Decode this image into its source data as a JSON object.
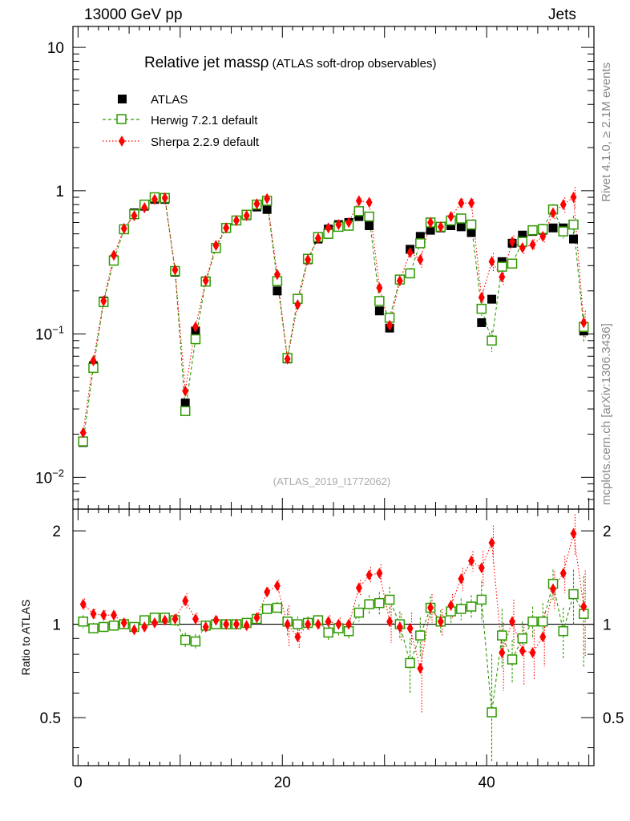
{
  "header": {
    "left": "13000 GeV pp",
    "right": "Jets"
  },
  "side_labels": {
    "rivet": "Rivet 4.1.0, ≥ 2.1M events",
    "mcplots": "mcplots.cern.ch [arXiv:1306.3436]"
  },
  "plot": {
    "title": "Relative jet mass",
    "title_symbol": "ρ",
    "title_suffix": " (ATLAS soft-drop observables)",
    "analysis_id": "(ATLAS_2019_I1772062)"
  },
  "legend": {
    "atlas": "ATLAS",
    "herwig": "Herwig 7.2.1 default",
    "sherpa": "Sherpa 2.2.9 default"
  },
  "colors": {
    "atlas": "#000000",
    "herwig": "#2e9900",
    "sherpa": "#ff0000"
  },
  "chart_data": {
    "type": "scatter",
    "xlim": [
      -0.5,
      50.5
    ],
    "ylim_main": [
      0.006,
      14
    ],
    "ylim_ratio": [
      0.35,
      2.35
    ],
    "x_ticks": [
      "0",
      "20",
      "40"
    ],
    "y_ticks_main": [
      "10",
      "1",
      "10−1",
      "10−2"
    ],
    "y_ticks_ratio": [
      "2",
      "1",
      "0.5"
    ],
    "ratio_ylabel": "Ratio to ATLAS",
    "x": [
      0.5,
      1.5,
      2.5,
      3.5,
      4.5,
      5.5,
      6.5,
      7.5,
      8.5,
      9.5,
      10.5,
      11.5,
      12.5,
      13.5,
      14.5,
      15.5,
      16.5,
      17.5,
      18.5,
      19.5,
      20.5,
      21.5,
      22.5,
      23.5,
      24.5,
      25.5,
      26.5,
      27.5,
      28.5,
      29.5,
      30.5,
      31.5,
      32.5,
      33.5,
      34.5,
      35.5,
      36.5,
      37.5,
      38.5,
      39.5,
      40.5,
      41.5,
      42.5,
      43.5,
      44.5,
      45.5,
      46.5,
      47.5,
      48.5,
      49.5
    ],
    "atlas": [
      0.0175,
      0.06,
      0.17,
      0.33,
      0.54,
      0.7,
      0.78,
      0.87,
      0.87,
      0.27,
      0.033,
      0.105,
      0.235,
      0.4,
      0.55,
      0.62,
      0.67,
      0.77,
      0.74,
      0.2,
      0.067,
      0.175,
      0.33,
      0.46,
      0.54,
      0.58,
      0.6,
      0.66,
      0.57,
      0.145,
      0.11,
      0.24,
      0.39,
      0.48,
      0.53,
      0.55,
      0.57,
      0.56,
      0.51,
      0.12,
      0.175,
      0.32,
      0.43,
      0.49,
      0.52,
      0.53,
      0.55,
      0.55,
      0.46,
      0.105
    ],
    "herwig": [
      0.0178,
      0.058,
      0.167,
      0.325,
      0.538,
      0.685,
      0.8,
      0.9,
      0.89,
      0.275,
      0.029,
      0.092,
      0.232,
      0.398,
      0.55,
      0.62,
      0.68,
      0.8,
      0.85,
      0.234,
      0.068,
      0.176,
      0.335,
      0.475,
      0.5,
      0.56,
      0.57,
      0.72,
      0.66,
      0.17,
      0.13,
      0.24,
      0.265,
      0.43,
      0.6,
      0.56,
      0.62,
      0.64,
      0.58,
      0.15,
      0.09,
      0.295,
      0.31,
      0.44,
      0.53,
      0.54,
      0.74,
      0.52,
      0.58,
      0.112
    ],
    "sherpa": [
      0.0205,
      0.065,
      0.17,
      0.355,
      0.545,
      0.67,
      0.76,
      0.87,
      0.89,
      0.28,
      0.04,
      0.112,
      0.236,
      0.415,
      0.55,
      0.62,
      0.67,
      0.81,
      0.88,
      0.26,
      0.067,
      0.16,
      0.33,
      0.465,
      0.55,
      0.58,
      0.6,
      0.85,
      0.83,
      0.21,
      0.115,
      0.235,
      0.37,
      0.33,
      0.6,
      0.56,
      0.66,
      0.82,
      0.82,
      0.18,
      0.32,
      0.25,
      0.44,
      0.4,
      0.42,
      0.48,
      0.7,
      0.8,
      0.9,
      0.12
    ],
    "herwig_ratio": [
      1.02,
      0.97,
      0.98,
      0.99,
      1.0,
      0.98,
      1.03,
      1.05,
      1.05,
      1.03,
      0.89,
      0.88,
      0.99,
      1.0,
      1.0,
      1.0,
      1.01,
      1.04,
      1.12,
      1.13,
      1.02,
      1.0,
      1.01,
      1.03,
      0.94,
      0.97,
      0.95,
      1.09,
      1.16,
      1.17,
      1.2,
      1.0,
      0.75,
      0.92,
      1.13,
      1.02,
      1.1,
      1.12,
      1.14,
      1.2,
      0.52,
      0.92,
      0.77,
      0.9,
      1.02,
      1.02,
      1.35,
      0.95,
      1.25,
      1.08
    ],
    "sherpa_ratio": [
      1.16,
      1.08,
      1.07,
      1.07,
      1.01,
      0.96,
      0.98,
      1.01,
      1.03,
      1.04,
      1.19,
      1.04,
      0.98,
      1.03,
      1.0,
      1.0,
      0.99,
      1.05,
      1.27,
      1.33,
      1.0,
      0.91,
      1.0,
      1.0,
      1.02,
      1.0,
      1.0,
      1.31,
      1.44,
      1.46,
      1.02,
      0.98,
      0.97,
      0.72,
      1.13,
      1.02,
      1.15,
      1.4,
      1.6,
      1.52,
      1.83,
      0.81,
      1.02,
      0.82,
      0.81,
      0.91,
      1.3,
      1.46,
      1.96,
      1.14
    ],
    "herwig_err": [
      0.05,
      0.04,
      0.04,
      0.03,
      0.03,
      0.03,
      0.03,
      0.03,
      0.03,
      0.04,
      0.05,
      0.05,
      0.04,
      0.03,
      0.03,
      0.03,
      0.03,
      0.03,
      0.04,
      0.05,
      0.1,
      0.06,
      0.05,
      0.04,
      0.05,
      0.05,
      0.05,
      0.07,
      0.08,
      0.1,
      0.12,
      0.1,
      0.15,
      0.13,
      0.1,
      0.09,
      0.09,
      0.09,
      0.1,
      0.18,
      0.28,
      0.2,
      0.12,
      0.12,
      0.12,
      0.15,
      0.15,
      0.18,
      0.25,
      0.35
    ],
    "sherpa_err": [
      0.05,
      0.04,
      0.04,
      0.03,
      0.03,
      0.03,
      0.03,
      0.03,
      0.03,
      0.04,
      0.07,
      0.05,
      0.04,
      0.03,
      0.03,
      0.03,
      0.03,
      0.04,
      0.04,
      0.06,
      0.15,
      0.07,
      0.05,
      0.04,
      0.05,
      0.05,
      0.05,
      0.08,
      0.09,
      0.1,
      0.15,
      0.1,
      0.12,
      0.2,
      0.12,
      0.1,
      0.1,
      0.12,
      0.12,
      0.2,
      0.25,
      0.2,
      0.18,
      0.18,
      0.15,
      0.18,
      0.18,
      0.2,
      0.3,
      0.35
    ]
  }
}
